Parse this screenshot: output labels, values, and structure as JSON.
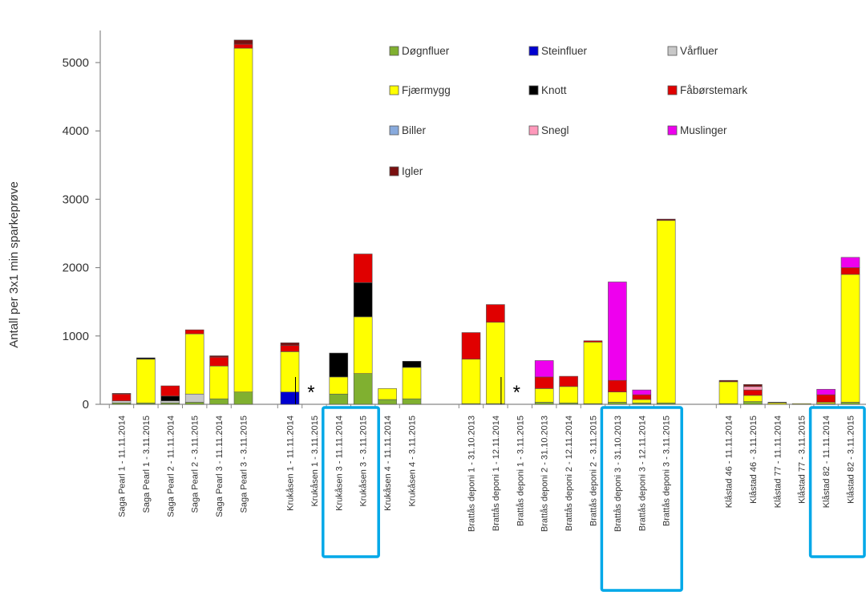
{
  "chart_data": {
    "type": "bar",
    "stacked": true,
    "title": "",
    "xlabel": "",
    "ylabel": "Antall per 3x1 min sparkeprøve",
    "ylim": [
      0,
      5600
    ],
    "yticks": [
      0,
      1000,
      2000,
      3000,
      4000,
      5000
    ],
    "grid": false,
    "legend_position": "top-right, inside plot, 3 columns",
    "series_names": [
      "Døgnfluer",
      "Steinfluer",
      "Vårfluer",
      "Fjærmygg",
      "Knott",
      "Fåbørstemark",
      "Biller",
      "Snegl",
      "Muslinger",
      "Igler"
    ],
    "series_colors": [
      "#80b030",
      "#0000d0",
      "#c8c8c8",
      "#ffff00",
      "#000000",
      "#e00000",
      "#88aadd",
      "#ff99bb",
      "#ee00ee",
      "#7a1010"
    ],
    "categories": [
      {
        "label": "Saga Pearl 1 - 11.11.2014",
        "values": {
          "Døgnfluer": 20,
          "Vårfluer": 30,
          "Fåbørstemark": 100,
          "Igler": 10
        }
      },
      {
        "label": "Saga Pearl 1 - 3.11.2015",
        "values": {
          "Døgnfluer": 20,
          "Knott": 20,
          "Fjærmygg": 640
        }
      },
      {
        "label": "Saga Pearl 2 - 11.11.2014",
        "values": {
          "Døgnfluer": 20,
          "Vårfluer": 30,
          "Knott": 70,
          "Fåbørstemark": 150
        }
      },
      {
        "label": "Saga Pearl 2 - 3.11.2015",
        "values": {
          "Døgnfluer": 30,
          "Vårfluer": 120,
          "Fjærmygg": 880,
          "Fåbørstemark": 60
        }
      },
      {
        "label": "Saga Pearl 3 - 11.11.2014",
        "values": {
          "Døgnfluer": 80,
          "Fjærmygg": 480,
          "Fåbørstemark": 130,
          "Igler": 20
        }
      },
      {
        "label": "Saga Pearl 3 - 3.11.2015",
        "values": {
          "Døgnfluer": 180,
          "Fjærmygg": 5030,
          "Fåbørstemark": 60,
          "Igler": 60
        }
      },
      {
        "label": "Krukåsen 1 - 11.11.2014",
        "values": {
          "Steinfluer": 180,
          "Fjærmygg": 590,
          "Fåbørstemark": 90,
          "Igler": 40
        }
      },
      {
        "label": "Krukåsen 1 - 3.11.2015",
        "values": {}
      },
      {
        "label": "Krukåsen 3 - 11.11.2014",
        "values": {
          "Døgnfluer": 150,
          "Fjærmygg": 250,
          "Knott": 350
        }
      },
      {
        "label": "Krukåsen 3 - 3.11.2015",
        "values": {
          "Døgnfluer": 450,
          "Fjærmygg": 830,
          "Knott": 500,
          "Fåbørstemark": 420
        }
      },
      {
        "label": "Krukåsen 4 - 11.11.2014",
        "values": {
          "Døgnfluer": 70,
          "Fjærmygg": 160
        }
      },
      {
        "label": "Krukåsen 4 - 3.11.2015",
        "values": {
          "Døgnfluer": 80,
          "Fjærmygg": 460,
          "Knott": 90
        }
      },
      {
        "label": "Brattås deponi 1 - 31.10.2013",
        "values": {
          "Døgnfluer": 10,
          "Fjærmygg": 650,
          "Fåbørstemark": 390
        }
      },
      {
        "label": "Brattås deponi 1 - 12.11.2014",
        "values": {
          "Døgnfluer": 10,
          "Fjærmygg": 1190,
          "Fåbørstemark": 260
        }
      },
      {
        "label": "Brattås deponi 1 - 3.11.2015",
        "values": {}
      },
      {
        "label": "Brattås deponi 2 - 31.10.2013",
        "values": {
          "Døgnfluer": 30,
          "Fjærmygg": 200,
          "Fåbørstemark": 170,
          "Muslinger": 240
        }
      },
      {
        "label": "Brattås deponi 2 - 12.11.2014",
        "values": {
          "Døgnfluer": 20,
          "Fjærmygg": 240,
          "Fåbørstemark": 150
        }
      },
      {
        "label": "Brattås deponi 2 - 3.11.2015",
        "values": {
          "Døgnfluer": 10,
          "Fjærmygg": 900,
          "Fåbørstemark": 20
        }
      },
      {
        "label": "Brattås deponi 3 - 31.10.2013",
        "values": {
          "Døgnfluer": 30,
          "Fjærmygg": 150,
          "Fåbørstemark": 170,
          "Muslinger": 1440
        }
      },
      {
        "label": "Brattås deponi 3 - 12.11.2014",
        "values": {
          "Døgnfluer": 20,
          "Fjærmygg": 50,
          "Fåbørstemark": 70,
          "Muslinger": 70
        }
      },
      {
        "label": "Brattås deponi 3 - 3.11.2015",
        "values": {
          "Døgnfluer": 20,
          "Fjærmygg": 2670,
          "Igler": 20
        }
      },
      {
        "label": "Klåstad 46 - 11.11.2014",
        "values": {
          "Døgnfluer": 10,
          "Fjærmygg": 320,
          "Igler": 20
        }
      },
      {
        "label": "Klåstad 46 - 3.11.2015",
        "values": {
          "Døgnfluer": 40,
          "Fjærmygg": 90,
          "Fåbørstemark": 80,
          "Igler": 30,
          "Snegl": 50
        }
      },
      {
        "label": "Klåstad 77 - 11.11.2014",
        "values": {
          "Fjærmygg": 20,
          "Knott": 10
        }
      },
      {
        "label": "Klåstad 77 - 3.11.2015",
        "values": {
          "Fjærmygg": 10
        }
      },
      {
        "label": "Klåstad 82 - 11.11.2014",
        "values": {
          "Døgnfluer": 10,
          "Fjærmygg": 20,
          "Fåbørstemark": 110,
          "Muslinger": 80
        }
      },
      {
        "label": "Klåstad 82 - 3.11.2015",
        "values": {
          "Døgnfluer": 30,
          "Fjærmygg": 1870,
          "Fåbørstemark": 100,
          "Muslinger": 150
        }
      }
    ],
    "missing_markers": [
      {
        "category_index": 7,
        "label": "*"
      },
      {
        "category_index": 14,
        "label": "*"
      }
    ],
    "highlight_boxes": [
      {
        "from": 8,
        "to": 9,
        "color": "#00a8e8"
      },
      {
        "from": 18,
        "to": 20,
        "color": "#00a8e8"
      },
      {
        "from": 25,
        "to": 26,
        "color": "#00a8e8"
      }
    ]
  }
}
